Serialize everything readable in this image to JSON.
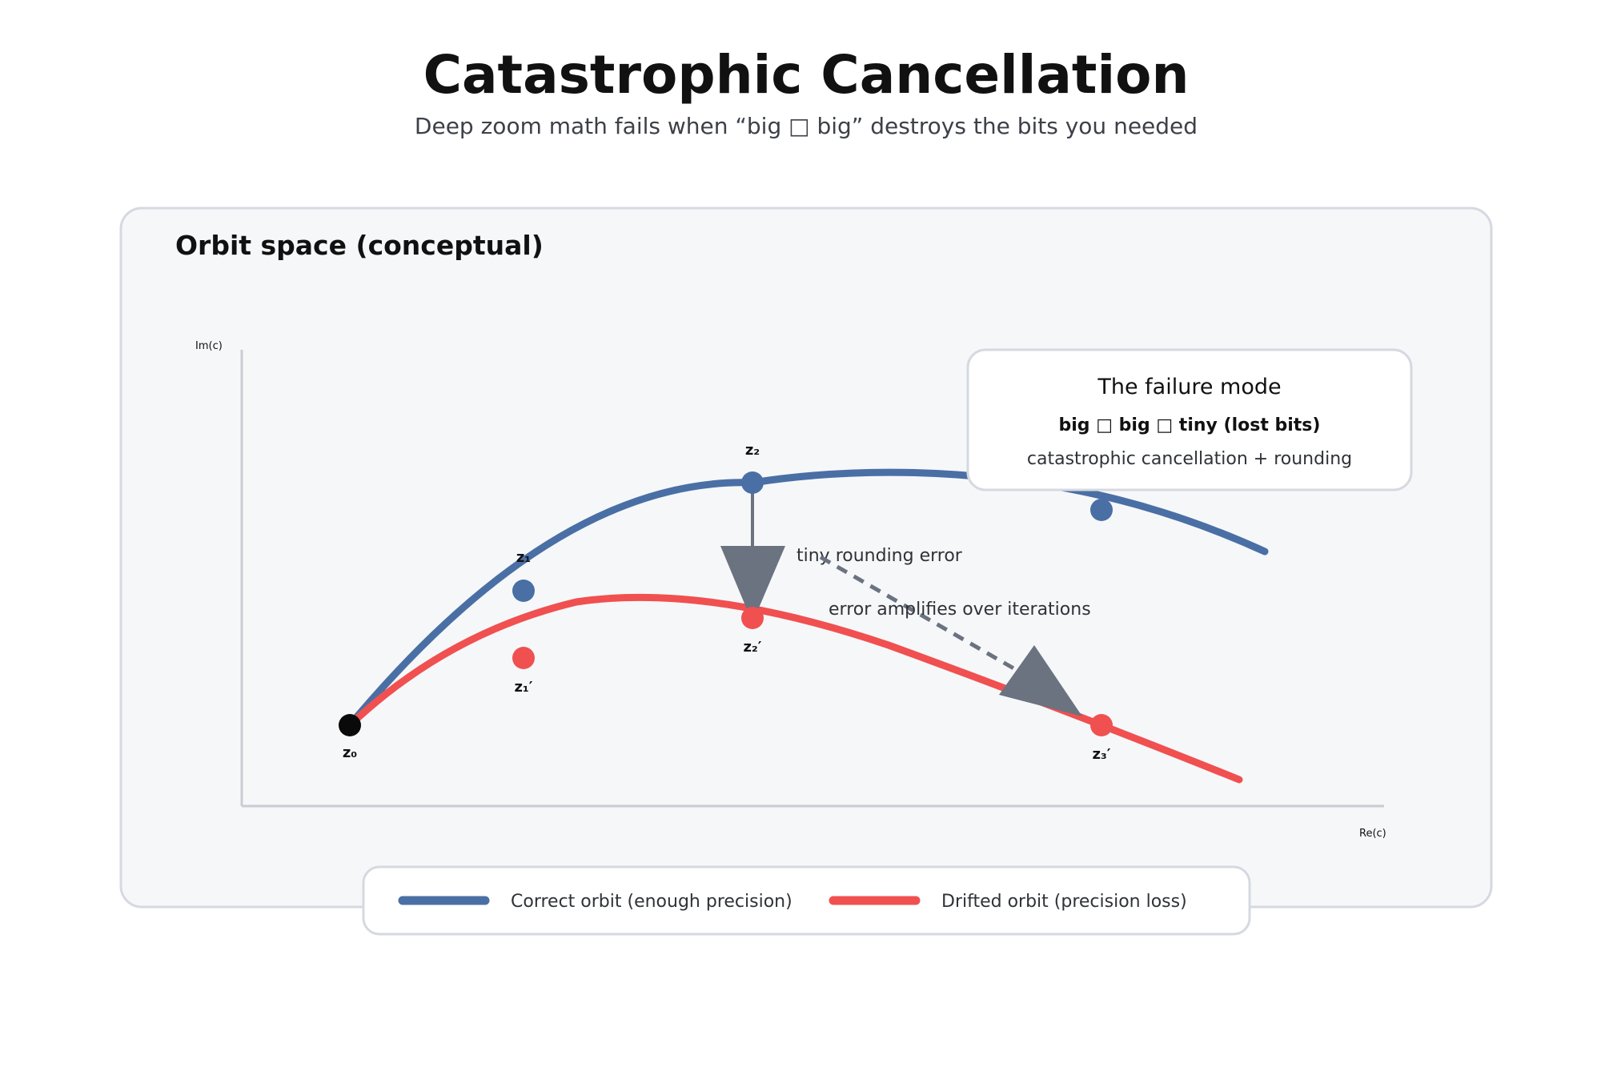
{
  "header": {
    "title": "Catastrophic Cancellation",
    "subtitle": "Deep zoom math fails when “big □ big” destroys the bits you needed"
  },
  "panel": {
    "title": "Orbit space (conceptual)",
    "x_axis_label": "Re(c)",
    "y_axis_label": "Im(c)"
  },
  "colors": {
    "correct": "#4a6fa5",
    "drifted": "#f05050",
    "origin": "#0a0a0a",
    "arrow": "#6b7280",
    "panel_bg": "#f6f7f9",
    "panel_border": "#d5d9e0"
  },
  "points": {
    "z0": "z₀",
    "z1": "z₁",
    "z2": "z₂",
    "z1_drift": "z₁′",
    "z2_drift": "z₂′",
    "z3_drift": "z₃′"
  },
  "annotations": {
    "rounding": "tiny rounding error",
    "amplify": "error amplifies over iterations"
  },
  "callout": {
    "title": "The failure mode",
    "formula": "big □ big □ tiny (lost bits)",
    "detail": "catastrophic cancellation + rounding"
  },
  "legend": {
    "correct": "Correct orbit (enough precision)",
    "drifted": "Drifted orbit (precision loss)"
  }
}
